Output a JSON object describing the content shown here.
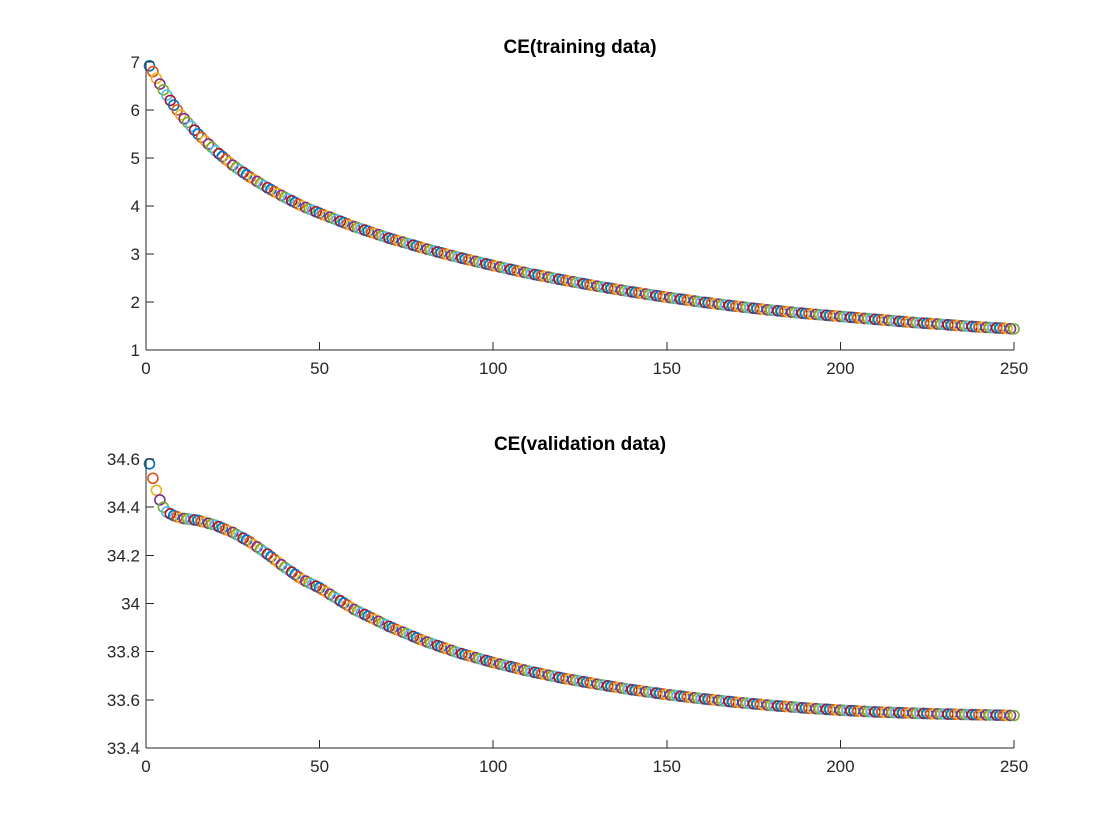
{
  "chart_data": [
    {
      "type": "scatter",
      "title": "CE(training data)",
      "xlabel": "",
      "ylabel": "",
      "xlim": [
        0,
        250
      ],
      "ylim": [
        1,
        7
      ],
      "x_ticks": [
        0,
        50,
        100,
        150,
        200,
        250
      ],
      "y_ticks": [
        1,
        2,
        3,
        4,
        5,
        6,
        7
      ],
      "x_tick_labels": [
        "0",
        "50",
        "100",
        "150",
        "200",
        "250"
      ],
      "y_tick_labels": [
        "1",
        "2",
        "3",
        "4",
        "5",
        "6",
        "7"
      ],
      "marker": "circle",
      "grid": false,
      "key_points": {
        "x": [
          1,
          2,
          3,
          5,
          7,
          10,
          15,
          20,
          25,
          30,
          35,
          40,
          45,
          50,
          60,
          70,
          80,
          90,
          100,
          110,
          120,
          130,
          140,
          150,
          160,
          170,
          180,
          190,
          200,
          210,
          220,
          230,
          240,
          250
        ],
        "y": [
          6.92,
          6.8,
          6.66,
          6.42,
          6.2,
          5.9,
          5.5,
          5.15,
          4.85,
          4.6,
          4.38,
          4.18,
          4.0,
          3.85,
          3.57,
          3.33,
          3.12,
          2.93,
          2.76,
          2.6,
          2.46,
          2.33,
          2.21,
          2.1,
          2.0,
          1.91,
          1.83,
          1.76,
          1.7,
          1.64,
          1.58,
          1.53,
          1.48,
          1.44
        ]
      }
    },
    {
      "type": "scatter",
      "title": "CE(validation data)",
      "xlabel": "",
      "ylabel": "",
      "xlim": [
        0,
        250
      ],
      "ylim": [
        33.4,
        34.6
      ],
      "x_ticks": [
        0,
        50,
        100,
        150,
        200,
        250
      ],
      "y_ticks": [
        33.4,
        33.6,
        33.8,
        34,
        34.2,
        34.4,
        34.6
      ],
      "x_tick_labels": [
        "0",
        "50",
        "100",
        "150",
        "200",
        "250"
      ],
      "y_tick_labels": [
        "33.4",
        "33.6",
        "33.8",
        "34",
        "34.2",
        "34.4",
        "34.6"
      ],
      "marker": "circle",
      "grid": false,
      "key_points": {
        "x": [
          1,
          2,
          3,
          4,
          5,
          6,
          8,
          10,
          15,
          20,
          25,
          30,
          35,
          40,
          45,
          50,
          60,
          70,
          80,
          90,
          100,
          110,
          120,
          130,
          140,
          150,
          160,
          170,
          180,
          190,
          200,
          210,
          220,
          230,
          240,
          250
        ],
        "y": [
          34.58,
          34.52,
          34.47,
          34.43,
          34.4,
          34.38,
          34.365,
          34.355,
          34.345,
          34.325,
          34.295,
          34.255,
          34.205,
          34.15,
          34.1,
          34.065,
          33.975,
          33.905,
          33.845,
          33.795,
          33.755,
          33.72,
          33.69,
          33.665,
          33.642,
          33.622,
          33.605,
          33.59,
          33.577,
          33.566,
          33.557,
          33.55,
          33.545,
          33.541,
          33.538,
          33.535
        ]
      }
    }
  ],
  "marker_colors": [
    "#0072bd",
    "#d95319",
    "#edb120",
    "#7e2f8e",
    "#77ac30",
    "#4dbeee",
    "#a2142f"
  ]
}
